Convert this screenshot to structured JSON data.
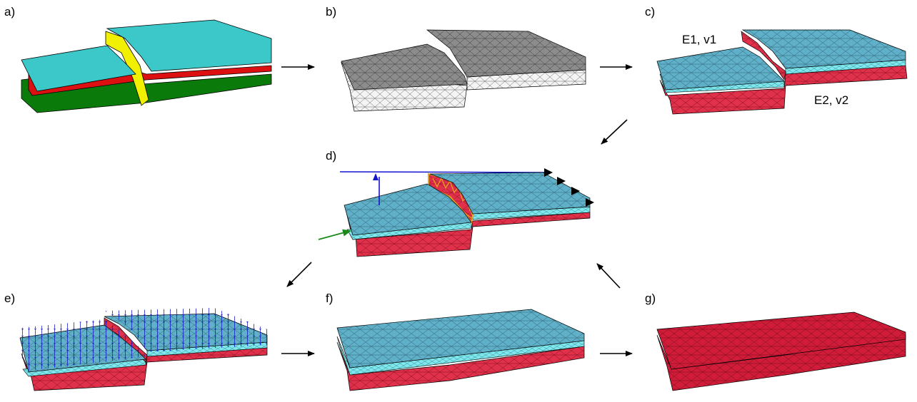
{
  "panels": {
    "a": {
      "label": "a)"
    },
    "b": {
      "label": "b)"
    },
    "c": {
      "label": "c)",
      "top_layer_label": "E1, v1",
      "bottom_layer_label": "E2, v2"
    },
    "d": {
      "label": "d)"
    },
    "e": {
      "label": "e)"
    },
    "f": {
      "label": "f)"
    },
    "g": {
      "label": "g)"
    }
  },
  "colors": {
    "surface_cyan": "#3cc8c8",
    "fault_yellow": "#f0f000",
    "layer_red": "#dc1010",
    "base_green": "#0a7a0a",
    "mesh_gray": "#9a9a9a",
    "mesh_white": "#f2f2f2",
    "top_block_blue": "#5fb0c8",
    "thin_layer_cyan": "#7fe8ee",
    "bottom_block_red": "#e0304a",
    "vector_blue": "#1414d0",
    "load_green": "#1a8a1a",
    "fault_outline_orange": "#e8a020"
  }
}
